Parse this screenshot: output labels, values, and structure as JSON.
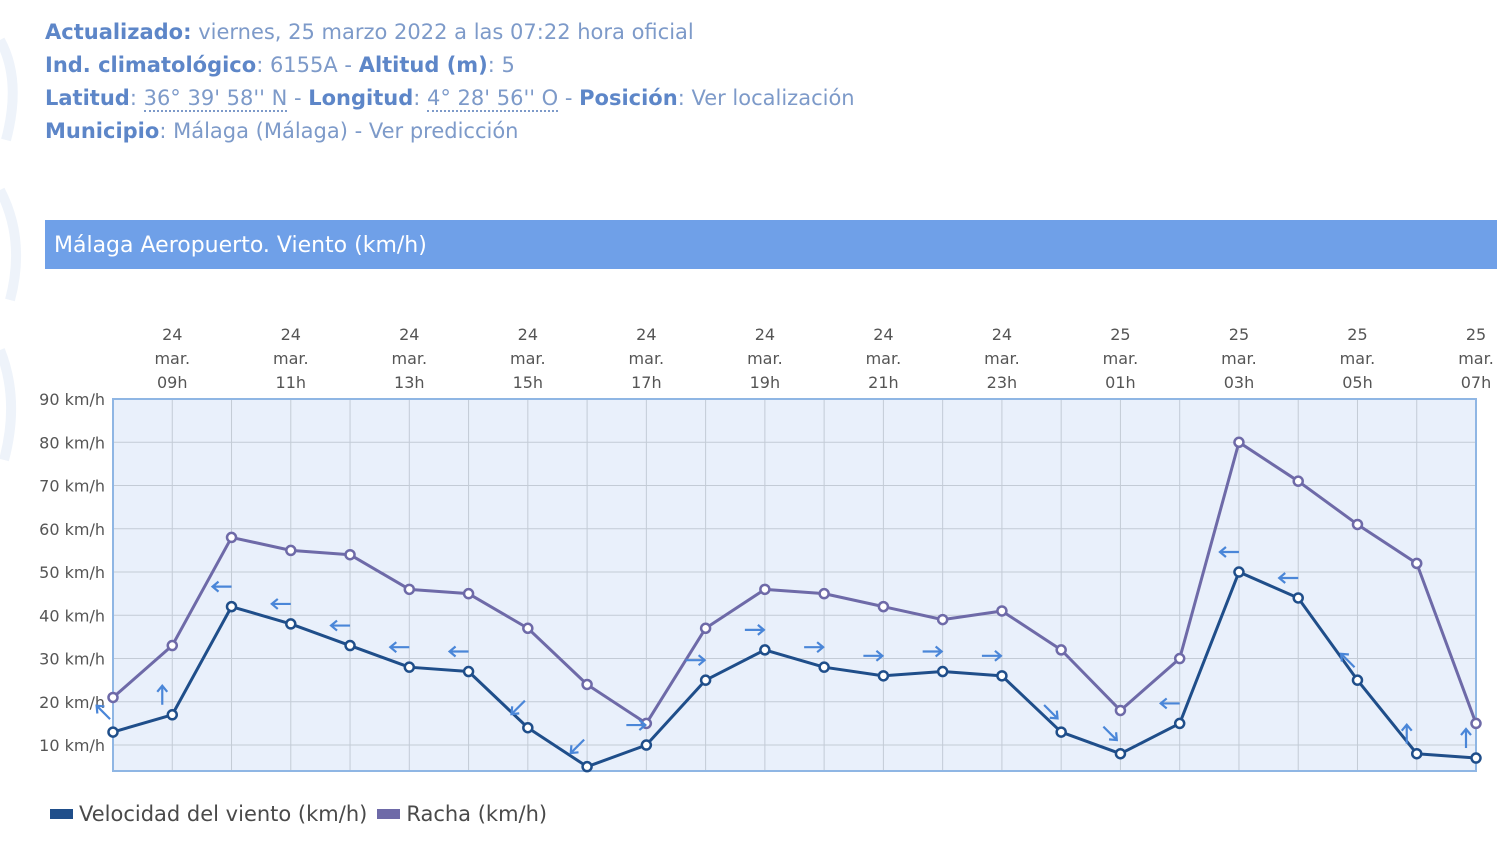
{
  "station": {
    "updated_label": "Actualizado:",
    "updated_value": " viernes, 25 marzo 2022 a las 07:22 hora oficial",
    "climate_label": "Ind. climatológico",
    "climate_value": ": 6155A - ",
    "altitude_label": "Altitud (m)",
    "altitude_value": ": 5",
    "lat_label": "Latitud",
    "lat_value": "36° 39' 58'' N",
    "lon_label": "Longitud",
    "lon_value": "4° 28' 56'' O",
    "position_label": "Posición",
    "position_link": "Ver localización",
    "municipality_label": "Municipio",
    "municipality_value": "Málaga (Málaga)",
    "forecast_link": "Ver predicción"
  },
  "banner_title": "Málaga Aeropuerto. Viento (km/h)",
  "colors": {
    "wind": "#1f4e8a",
    "gust": "#6e6aa8",
    "arrow": "#4a86d8",
    "plot_bg": "#e9f0fb",
    "plot_border": "#8fb6e4",
    "banner": "#6fa0e8"
  },
  "chart_data": {
    "type": "line",
    "title": "Málaga Aeropuerto. Viento (km/h)",
    "x": [
      "24 mar. 08h",
      "24 mar. 09h",
      "24 mar. 10h",
      "24 mar. 11h",
      "24 mar. 12h",
      "24 mar. 13h",
      "24 mar. 14h",
      "24 mar. 15h",
      "24 mar. 16h",
      "24 mar. 17h",
      "24 mar. 18h",
      "24 mar. 19h",
      "24 mar. 20h",
      "24 mar. 21h",
      "24 mar. 22h",
      "24 mar. 23h",
      "25 mar. 00h",
      "25 mar. 01h",
      "25 mar. 02h",
      "25 mar. 03h",
      "25 mar. 04h",
      "25 mar. 05h",
      "25 mar. 06h",
      "25 mar. 07h"
    ],
    "x_ticks": [
      {
        "day": "24",
        "mon": "mar.",
        "hour": "09h"
      },
      {
        "day": "24",
        "mon": "mar.",
        "hour": "11h"
      },
      {
        "day": "24",
        "mon": "mar.",
        "hour": "13h"
      },
      {
        "day": "24",
        "mon": "mar.",
        "hour": "15h"
      },
      {
        "day": "24",
        "mon": "mar.",
        "hour": "17h"
      },
      {
        "day": "24",
        "mon": "mar.",
        "hour": "19h"
      },
      {
        "day": "24",
        "mon": "mar.",
        "hour": "21h"
      },
      {
        "day": "24",
        "mon": "mar.",
        "hour": "23h"
      },
      {
        "day": "25",
        "mon": "mar.",
        "hour": "01h"
      },
      {
        "day": "25",
        "mon": "mar.",
        "hour": "03h"
      },
      {
        "day": "25",
        "mon": "mar.",
        "hour": "05h"
      },
      {
        "day": "25",
        "mon": "mar.",
        "hour": "07h"
      }
    ],
    "y_ticks": [
      "10 km/h",
      "20 km/h",
      "30 km/h",
      "40 km/h",
      "50 km/h",
      "60 km/h",
      "70 km/h",
      "80 km/h",
      "90 km/h"
    ],
    "ylim": [
      4,
      90
    ],
    "grid": true,
    "legend_position": "bottom-left",
    "series": [
      {
        "name": "Velocidad del viento (km/h)",
        "values": [
          13,
          17,
          42,
          38,
          33,
          28,
          27,
          14,
          5,
          10,
          25,
          32,
          28,
          26,
          27,
          26,
          13,
          8,
          15,
          50,
          44,
          25,
          8,
          7
        ],
        "wind_direction_arrows": [
          "up-left",
          "up",
          "left",
          "left",
          "left",
          "left",
          "left",
          "down-left",
          "down-left",
          "right",
          "right",
          "right",
          "right",
          "right",
          "right",
          "right",
          "down-right",
          "down-right",
          "left",
          "left",
          "left",
          "up-left",
          "up",
          "up"
        ]
      },
      {
        "name": "Racha (km/h)",
        "values": [
          21,
          33,
          58,
          55,
          54,
          46,
          45,
          37,
          24,
          15,
          37,
          46,
          45,
          42,
          39,
          41,
          32,
          18,
          30,
          80,
          71,
          61,
          52,
          15
        ]
      }
    ]
  }
}
